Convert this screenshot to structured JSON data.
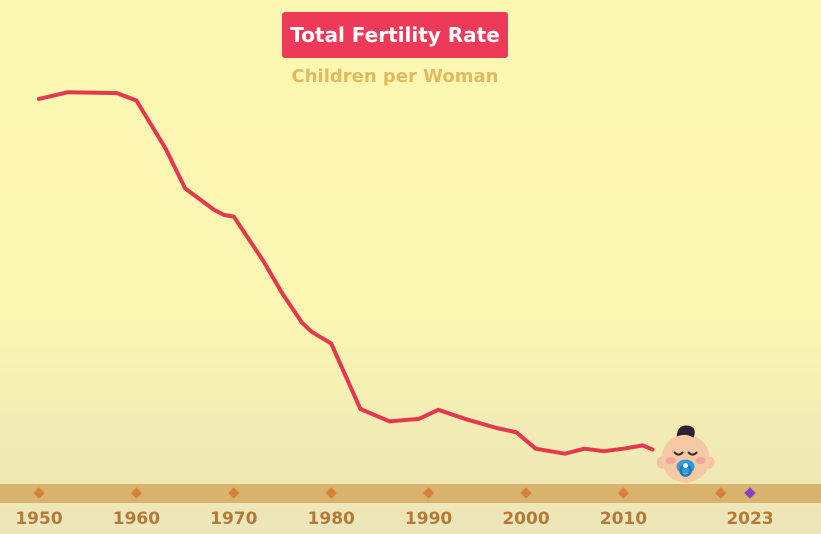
{
  "chart_data": {
    "type": "line",
    "title": "Total Fertility Rate",
    "subtitle": "Children per Woman",
    "xlabel": "",
    "ylabel": "",
    "xlim": [
      1950,
      2023
    ],
    "ylim": [
      1.0,
      6.5
    ],
    "x_ticks": [
      1950,
      1960,
      1970,
      1980,
      1990,
      2000,
      2010,
      2023
    ],
    "grid": false,
    "series": [
      {
        "name": "Total Fertility Rate",
        "color": "#e5384f",
        "x": [
          1950,
          1953,
          1958,
          1960,
          1963,
          1965,
          1968,
          1969,
          1970,
          1973,
          1975,
          1977,
          1978,
          1979,
          1980,
          1983,
          1986,
          1989,
          1991,
          1994,
          1997,
          1999,
          2001,
          2004,
          2006,
          2008,
          2010,
          2012,
          2013
        ],
        "values": [
          6.2,
          6.28,
          6.27,
          6.18,
          5.6,
          5.12,
          4.86,
          4.8,
          4.78,
          4.25,
          3.85,
          3.5,
          3.39,
          3.32,
          3.25,
          2.46,
          2.31,
          2.34,
          2.45,
          2.33,
          2.23,
          2.18,
          1.98,
          1.92,
          1.98,
          1.95,
          1.98,
          2.02,
          1.97
        ]
      }
    ],
    "marker_color": "#d87f3c",
    "current_year_marker_color": "#8a3fc4",
    "line_color": "#e5384f"
  }
}
